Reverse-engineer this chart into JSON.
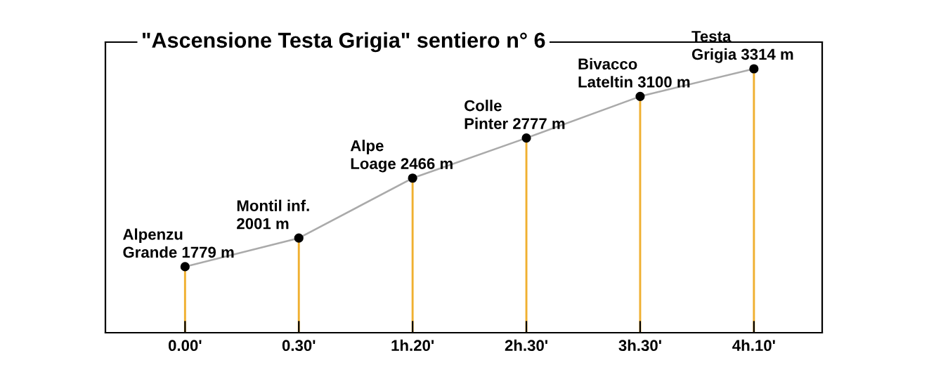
{
  "chart_data": {
    "type": "line",
    "title": "\"Ascensione Testa Grigia\" sentiero n° 6",
    "categories": [
      "0.00'",
      "0.30'",
      "1h.20'",
      "2h.30'",
      "3h.30'",
      "4h.10'"
    ],
    "ylim": [
      1267,
      3521
    ],
    "tick_labels": "x",
    "grid": false,
    "series": [
      {
        "color": "#aaaaaa",
        "values": [
          1779,
          2001,
          2466,
          2777,
          3100,
          3314
        ]
      },
      {
        "type": "bar",
        "color": "#f0b030",
        "values": [
          1779,
          2001,
          2466,
          2777,
          3100,
          3314
        ]
      },
      {
        "type": "scatter",
        "color": "#000000",
        "marker": "circle",
        "values": [
          1779,
          2001,
          2466,
          2777,
          3100,
          3314
        ],
        "value_labels": [
          "Alpenzu\nGrande 1779 m",
          "Montil inf.\n2001 m",
          "Alpe\nLoage 2466 m",
          "Colle\nPinter 2777 m",
          "Bivacco\nLateltin 3100 m",
          "Testa\nGrigia 3314 m"
        ]
      }
    ]
  }
}
